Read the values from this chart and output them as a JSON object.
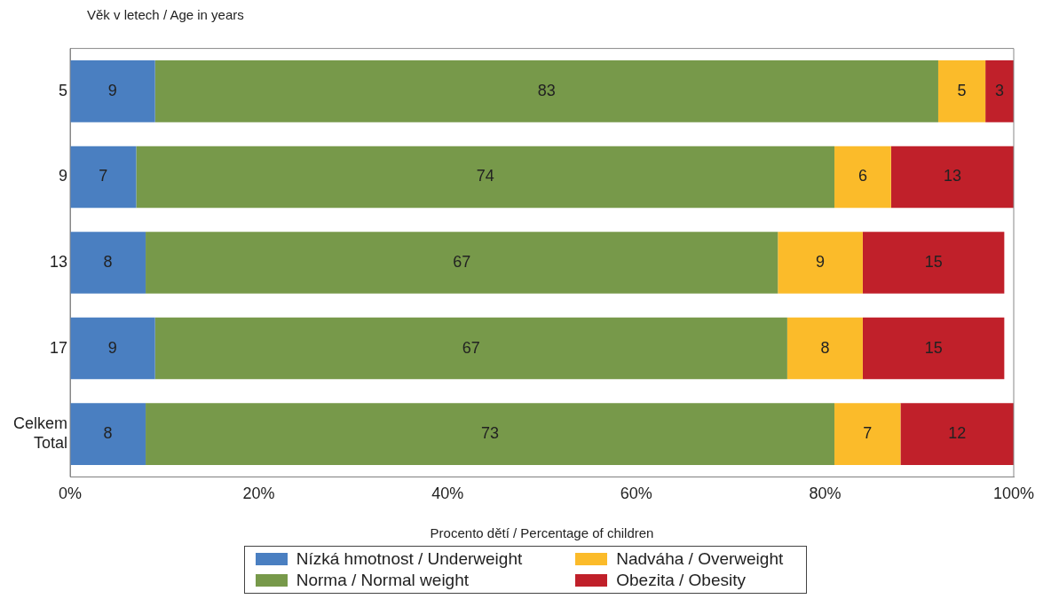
{
  "chart_data": {
    "type": "bar",
    "orientation": "horizontal",
    "stacked": true,
    "ylabel": "Věk v letech / Age in years",
    "xlabel": "Procento dětí / Percentage of children",
    "categories": [
      "5",
      "9",
      "13",
      "17",
      "Celkem\nTotal"
    ],
    "series": [
      {
        "name": "Nízká hmotnost / Underweight",
        "color": "#4a7fc1",
        "values": [
          9,
          7,
          8,
          9,
          8
        ]
      },
      {
        "name": "Norma / Normal weight",
        "color": "#77994a",
        "values": [
          83,
          74,
          67,
          67,
          73
        ]
      },
      {
        "name": "Nadváha / Overweight",
        "color": "#fbbb2a",
        "values": [
          5,
          6,
          9,
          8,
          7
        ]
      },
      {
        "name": "Obezita / Obesity",
        "color": "#c0202a",
        "values": [
          3,
          13,
          15,
          15,
          12
        ]
      }
    ],
    "xlim": [
      0,
      100
    ],
    "xticks": [
      {
        "value": 0,
        "label": "0%"
      },
      {
        "value": 20,
        "label": "20%"
      },
      {
        "value": 40,
        "label": "40%"
      },
      {
        "value": 60,
        "label": "60%"
      },
      {
        "value": 80,
        "label": "80%"
      },
      {
        "value": 100,
        "label": "100%"
      }
    ],
    "data_labels": true,
    "grid": false,
    "legend": "bottom"
  }
}
